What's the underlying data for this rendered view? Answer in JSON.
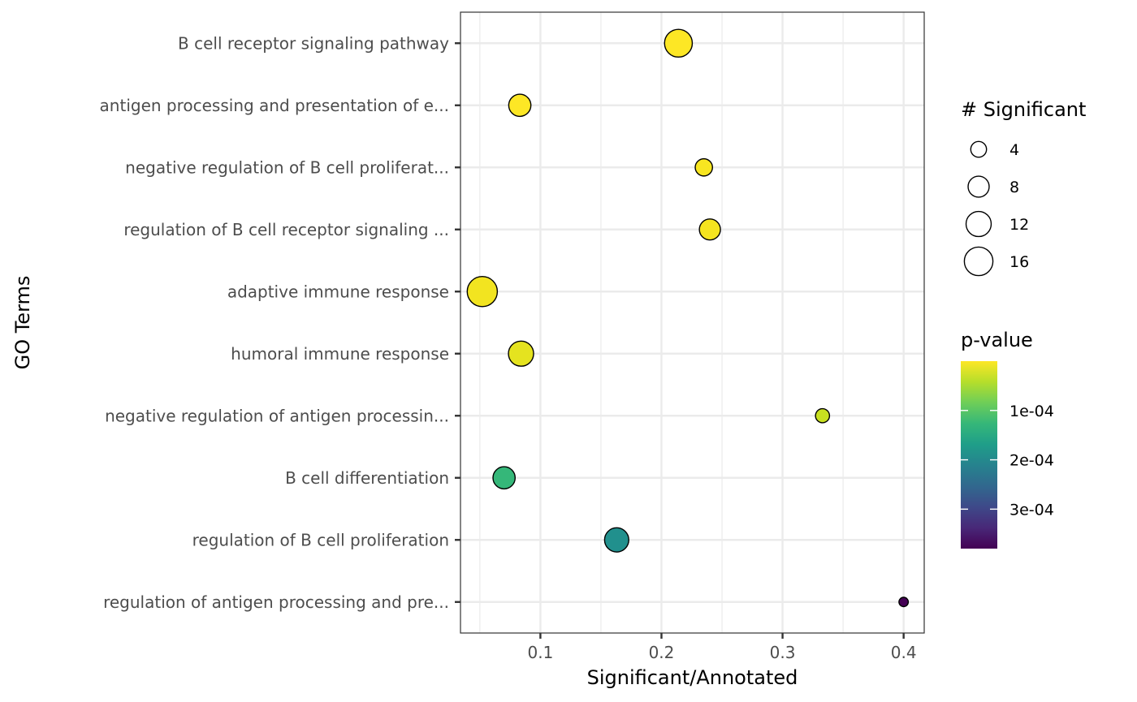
{
  "chart_data": {
    "type": "scatter",
    "title": "",
    "xlabel": "Significant/Annotated",
    "ylabel": "GO Terms",
    "xlim": [
      0.034,
      0.417
    ],
    "x_ticks": [
      {
        "value": 0.1,
        "label": "0.1"
      },
      {
        "value": 0.2,
        "label": "0.2"
      },
      {
        "value": 0.3,
        "label": "0.3"
      },
      {
        "value": 0.4,
        "label": "0.4"
      }
    ],
    "grid": true,
    "categories": [
      "B cell receptor signaling pathway",
      "antigen processing and presentation of e...",
      "negative regulation of B cell proliferat...",
      "regulation of B cell receptor signaling ...",
      "adaptive immune response",
      "humoral immune response",
      "negative regulation of antigen processin...",
      "B cell differentiation",
      "regulation of B cell proliferation",
      "regulation of antigen processing and pre..."
    ],
    "points": [
      {
        "term": "B cell receptor signaling pathway",
        "x": 0.214,
        "significant": 15,
        "pvalue": 2e-06,
        "color": "#fde725"
      },
      {
        "term": "antigen processing and presentation of e...",
        "x": 0.083,
        "significant": 9,
        "pvalue": 4e-06,
        "color": "#fde725"
      },
      {
        "term": "negative regulation of B cell proliferat...",
        "x": 0.235,
        "significant": 5,
        "pvalue": 6e-06,
        "color": "#f8e621"
      },
      {
        "term": "regulation of B cell receptor signaling ...",
        "x": 0.24,
        "significant": 8,
        "pvalue": 8e-06,
        "color": "#f5e41f"
      },
      {
        "term": "adaptive immune response",
        "x": 0.052,
        "significant": 18,
        "pvalue": 1.2e-05,
        "color": "#f2e420"
      },
      {
        "term": "humoral immune response",
        "x": 0.084,
        "significant": 12,
        "pvalue": 2.5e-05,
        "color": "#e5e31f"
      },
      {
        "term": "negative regulation of antigen processin...",
        "x": 0.333,
        "significant": 3,
        "pvalue": 5.7e-05,
        "color": "#c8e020"
      },
      {
        "term": "B cell differentiation",
        "x": 0.07,
        "significant": 9,
        "pvalue": 0.00017,
        "color": "#35b779"
      },
      {
        "term": "regulation of B cell proliferation",
        "x": 0.163,
        "significant": 11,
        "pvalue": 0.00021,
        "color": "#21908d"
      },
      {
        "term": "regulation of antigen processing and pre...",
        "x": 0.4,
        "significant": 1,
        "pvalue": 0.00038,
        "color": "#440154"
      }
    ],
    "size_legend": {
      "title": "# Significant",
      "entries": [
        {
          "value": 4,
          "label": "4"
        },
        {
          "value": 8,
          "label": "8"
        },
        {
          "value": 12,
          "label": "12"
        },
        {
          "value": 16,
          "label": "16"
        }
      ]
    },
    "color_legend": {
      "title": "p-value",
      "range": [
        0.0,
        0.00038
      ],
      "ticks": [
        {
          "value": 0.0001,
          "label": "1e-04"
        },
        {
          "value": 0.0002,
          "label": "2e-04"
        },
        {
          "value": 0.0003,
          "label": "3e-04"
        }
      ],
      "colors": [
        "#fde725",
        "#b5de2b",
        "#6ece58",
        "#35b779",
        "#1f9e89",
        "#26828e",
        "#31688e",
        "#3e4989",
        "#482878",
        "#440154"
      ]
    }
  }
}
